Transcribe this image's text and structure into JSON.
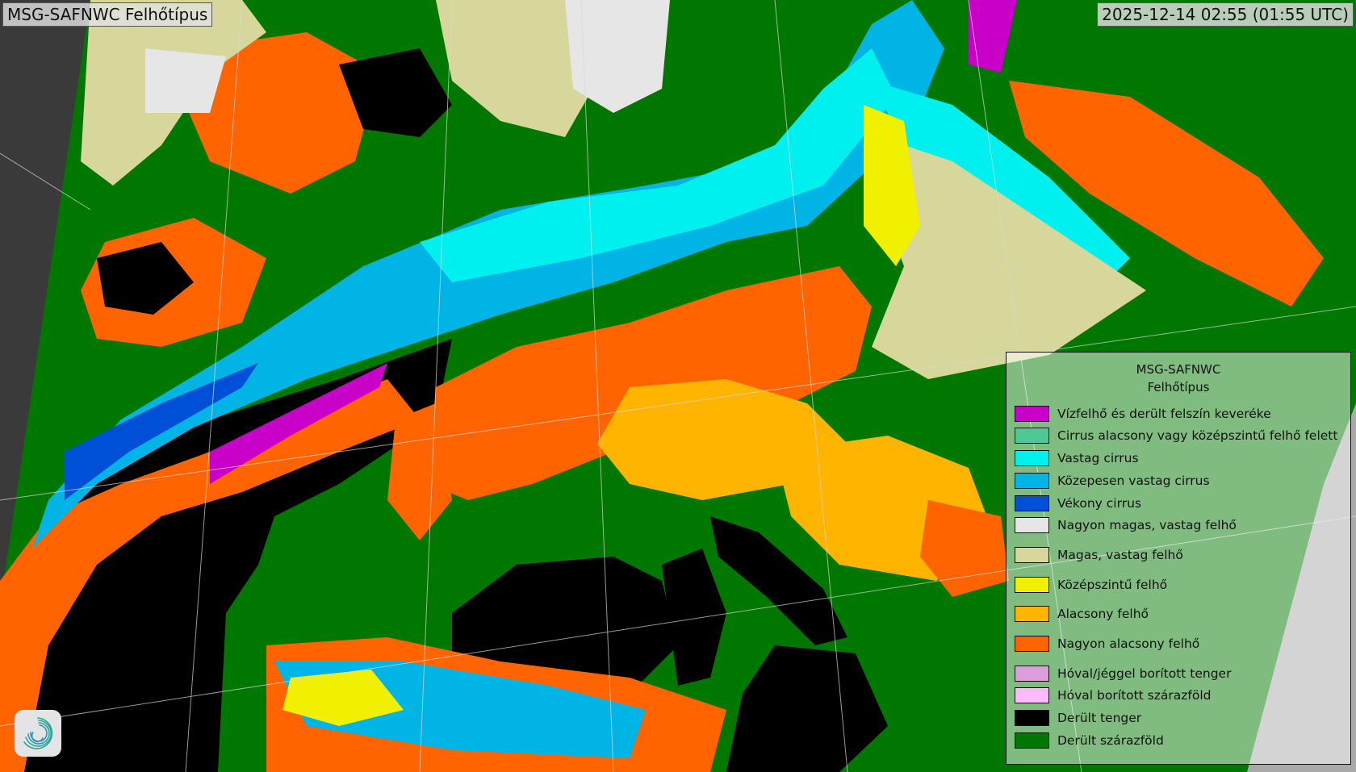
{
  "header": {
    "title": "MSG-SAFNWC Felhőtípus",
    "timestamp": "2025-12-14 02:55 (01:55 UTC)"
  },
  "legend": {
    "title_line1": "MSG-SAFNWC",
    "title_line2": "Felhőtípus",
    "items": [
      {
        "label": "Vízfelhő és derült felszín keveréke",
        "color": "#c800c8"
      },
      {
        "label": "Cirrus alacsony vagy középszintű felhő felett",
        "color": "#50c896"
      },
      {
        "label": "Vastag cirrus",
        "color": "#00f0f0"
      },
      {
        "label": "Közepesen vastag cirrus",
        "color": "#00b4e6"
      },
      {
        "label": "Vékony cirrus",
        "color": "#0050d7"
      },
      {
        "label": "Nagyon magas, vastag felhő",
        "color": "#e6e6e6"
      },
      {
        "label": "Magas, vastag felhő",
        "color": "#d7d79b"
      },
      {
        "label": "Középszintű felhő",
        "color": "#f0f000"
      },
      {
        "label": "Alacsony felhő",
        "color": "#ffb400"
      },
      {
        "label": "Nagyon alacsony felhő",
        "color": "#ff6400"
      },
      {
        "label": "Hóval/jéggel borított tenger",
        "color": "#dc9fdc"
      },
      {
        "label": "Hóval borított szárazföld",
        "color": "#ffbbff"
      },
      {
        "label": "Derült tenger",
        "color": "#000000"
      },
      {
        "label": "Derült szárazföld",
        "color": "#007800"
      }
    ]
  },
  "logo": {
    "icon": "swirl-logo-icon"
  }
}
